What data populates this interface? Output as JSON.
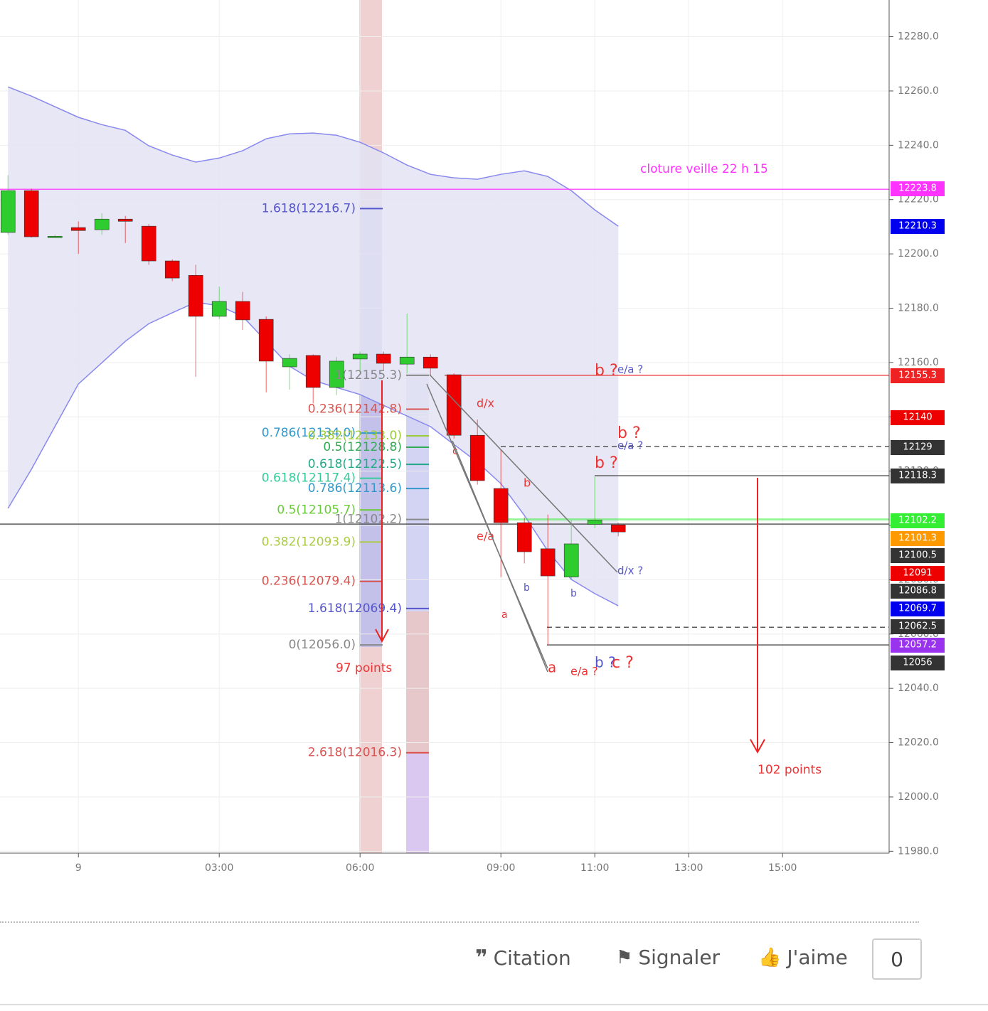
{
  "chart_data": {
    "type": "candlestick",
    "x": [
      -1.5,
      -1,
      -0.5,
      0,
      0.5,
      1,
      1.5,
      2,
      2.5,
      3,
      3.5,
      4,
      4.5,
      5,
      5.5,
      6,
      6.5,
      7,
      7.5,
      8,
      8.5,
      9,
      9.5,
      10,
      10.5,
      11,
      11.5
    ],
    "open": [
      12207.9,
      12223.3,
      12206.5,
      12209.7,
      12208.9,
      12212.8,
      12210.2,
      12197.4,
      12192.1,
      12177.0,
      12182.5,
      12175.9,
      12158.4,
      12162.6,
      12150.8,
      12161.3,
      12163.1,
      12159.4,
      12162.0,
      12155.5,
      12133.2,
      12113.6,
      12101.0,
      12091.4,
      12081.0,
      12100.4,
      12100.2
    ],
    "high": [
      12229.0,
      12224.0,
      12207.0,
      12212.0,
      12215.0,
      12214.0,
      12211.0,
      12198.0,
      12196.0,
      12188.0,
      12186.0,
      12177.0,
      12163.0,
      12163.0,
      12162.0,
      12164.0,
      12164.0,
      12178.0,
      12163.0,
      12156.0,
      12139.0,
      12128.0,
      12103.0,
      12104.0,
      12102.0,
      12118.0,
      12101.0
    ],
    "low": [
      12207.0,
      12206.0,
      12206.0,
      12200.0,
      12207.0,
      12204.0,
      12196.0,
      12190.0,
      12154.7,
      12176.0,
      12172.0,
      12149.0,
      12150.0,
      12145.0,
      12148.0,
      12156.0,
      12157.0,
      12156.0,
      12155.0,
      12132.0,
      12115.0,
      12081.0,
      12086.0,
      12056.0,
      12080.0,
      12099.0,
      12096.0
    ],
    "close": [
      12223.3,
      12206.3,
      12206.5,
      12208.6,
      12212.8,
      12212.0,
      12197.4,
      12191.1,
      12177.0,
      12182.5,
      12175.7,
      12160.5,
      12161.5,
      12150.8,
      12160.5,
      12163.1,
      12159.7,
      12162.0,
      12157.9,
      12133.2,
      12116.5,
      12101.0,
      12090.3,
      12081.4,
      12093.2,
      12102.0,
      12097.6
    ],
    "up_color": "#2ecc2e",
    "down_color": "#ee0000",
    "bands": [
      {
        "color": "#8888ee",
        "values": [
          12261.5,
          12258.1,
          12254.2,
          12250.3,
          12247.6,
          12245.5,
          12239.8,
          12236.4,
          12233.8,
          12235.3,
          12238.0,
          12242.4,
          12244.2,
          12244.5,
          12243.7,
          12241.1,
          12237.2,
          12232.7,
          12229.3,
          12228.0,
          12227.5,
          12229.3,
          12230.6,
          12228.5,
          12223.3,
          12216.2,
          12210.2
        ]
      },
      {
        "color": "#8888ee",
        "values": [
          12106.3,
          12120.7,
          12136.4,
          12152.1,
          12159.9,
          12167.8,
          12174.3,
          12178.3,
          12182.2,
          12180.9,
          12177.0,
          12167.8,
          12158.6,
          12153.4,
          12150.8,
          12148.2,
          12144.2,
          12140.3,
          12136.4,
          12129.8,
          12123.3,
          12115.4,
          12103.7,
          12090.6,
          12080.1,
          12074.9,
          12070.4
        ]
      }
    ],
    "band_fill": "#e3e3f3",
    "xlim": [
      -1.67,
      17.27
    ],
    "ylim": [
      11979.3,
      12293.5
    ],
    "xticks": [
      {
        "value": 0,
        "label": "9"
      },
      {
        "value": 3,
        "label": "03:00"
      },
      {
        "value": 6,
        "label": "06:00"
      },
      {
        "value": 9,
        "label": "09:00"
      },
      {
        "value": 11,
        "label": "11:00"
      },
      {
        "value": 13,
        "label": "13:00"
      },
      {
        "value": 15,
        "label": "15:00"
      }
    ],
    "yticks": [
      {
        "value": 11980,
        "label": "11980.0"
      },
      {
        "value": 12000,
        "label": "12000.0"
      },
      {
        "value": 12020,
        "label": "12020.0"
      },
      {
        "value": 12040,
        "label": "12040.0"
      },
      {
        "value": 12060,
        "label": "12060.0"
      },
      {
        "value": 12080,
        "label": "12080.0"
      },
      {
        "value": 12100,
        "label": "12100.0"
      },
      {
        "value": 12120,
        "label": "12120.0"
      },
      {
        "value": 12140,
        "label": "12140.0"
      },
      {
        "value": 12160,
        "label": "12160.0"
      },
      {
        "value": 12180,
        "label": "12180.0"
      },
      {
        "value": 12200,
        "label": "12200.0"
      },
      {
        "value": 12220,
        "label": "12220.0"
      },
      {
        "value": 12240,
        "label": "12240.0"
      },
      {
        "value": 12260,
        "label": "12260.0"
      },
      {
        "value": 12280,
        "label": "12280.0"
      }
    ],
    "grid": true,
    "levels": [
      {
        "value": 12223.8,
        "color": "#ff33ff"
      },
      {
        "value": 12210.3,
        "color": "#0000ee"
      },
      {
        "value": 12155.3,
        "color": "#ee2222"
      },
      {
        "value": 12140.0,
        "color": "#ee0000"
      },
      {
        "value": 12129.0,
        "color": "#333333"
      },
      {
        "value": 12118.3,
        "color": "#333333"
      },
      {
        "value": 12102.2,
        "color": "#33ee33"
      },
      {
        "value": 12101.3,
        "color": "#ff9900"
      },
      {
        "value": 12100.5,
        "color": "#333333"
      },
      {
        "value": 12091.0,
        "color": "#ee0000"
      },
      {
        "value": 12086.8,
        "color": "#333333"
      },
      {
        "value": 12069.7,
        "color": "#0000ee"
      },
      {
        "value": 12062.5,
        "color": "#333333"
      },
      {
        "value": 12057.2,
        "color": "#9933ee"
      },
      {
        "value": 12056.0,
        "color": "#333333"
      }
    ],
    "fib": [
      {
        "label": "1.618(12216.7)",
        "value": 12216.7,
        "color": "#5555cc"
      },
      {
        "label": "1(12155.3)",
        "value": 12155.3,
        "color": "#888888"
      },
      {
        "label": "0.236(12142.8)",
        "value": 12142.8,
        "color": "#d9534f"
      },
      {
        "label": "0.786(12134.0)",
        "value": 12134.0,
        "color": "#3399cc"
      },
      {
        "label": "0.382(12133.0)",
        "value": 12133.0,
        "color": "#99cc33"
      },
      {
        "label": "0.5(12128.8)",
        "value": 12128.8,
        "color": "#33aa55"
      },
      {
        "label": "0.618(12122.5)",
        "value": 12122.5,
        "color": "#22aa88"
      },
      {
        "label": "0.618(12117.4)",
        "value": 12117.4,
        "color": "#33cc99"
      },
      {
        "label": "0.786(12113.6)",
        "value": 12113.6,
        "color": "#3399cc"
      },
      {
        "label": "0.5(12105.7)",
        "value": 12105.7,
        "color": "#66cc33"
      },
      {
        "label": "1(12102.2)",
        "value": 12102.2,
        "color": "#888888"
      },
      {
        "label": "0.382(12093.9)",
        "value": 12093.9,
        "color": "#aacc44"
      },
      {
        "label": "0.236(12079.4)",
        "value": 12079.4,
        "color": "#d9534f"
      },
      {
        "label": "1.618(12069.4)",
        "value": 12069.4,
        "color": "#5555cc"
      },
      {
        "label": "0(12056.0)",
        "value": 12056.0,
        "color": "#888888"
      },
      {
        "label": "2.618(12016.3)",
        "value": 12016.3,
        "color": "#d9534f"
      }
    ],
    "annotations": [
      {
        "text": "cloture veille 22 h 15",
        "color": "#ff33ff"
      },
      {
        "text": "97 points",
        "color": "#ee3333"
      },
      {
        "text": "102 points",
        "color": "#ee3333"
      },
      {
        "text": "b ?",
        "color": "#ee3333"
      },
      {
        "text": "e/a ?",
        "color": "#5555cc"
      },
      {
        "text": "b ?",
        "color": "#ee3333"
      },
      {
        "text": "e/a ?",
        "color": "#5555cc"
      },
      {
        "text": "b ?",
        "color": "#ee3333"
      },
      {
        "text": "d/x",
        "color": "#ee3333"
      },
      {
        "text": "e/a",
        "color": "#ee3333"
      },
      {
        "text": "d/x ?",
        "color": "#5555cc"
      },
      {
        "text": "a",
        "color": "#ee3333"
      },
      {
        "text": "e/a ?",
        "color": "#ee3333"
      },
      {
        "text": "b ?",
        "color": "#5555cc"
      },
      {
        "text": "c ?",
        "color": "#ee3333"
      },
      {
        "text": "a",
        "color": "#ee3333"
      },
      {
        "text": "b",
        "color": "#5555cc"
      },
      {
        "text": "b",
        "color": "#5555cc"
      },
      {
        "text": "c",
        "color": "#ee3333"
      },
      {
        "text": "b",
        "color": "#ee3333"
      }
    ]
  },
  "post_actions": {
    "quote": "Citation",
    "report": "Signaler",
    "like": "J'aime",
    "like_count": "0"
  }
}
